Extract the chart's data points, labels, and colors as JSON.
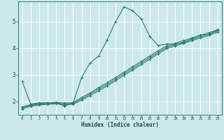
{
  "xlabel": "Humidex (Indice chaleur)",
  "bg_color": "#cce8ec",
  "grid_color": "#ffffff",
  "line_color": "#2e7d6e",
  "xlim": [
    -0.5,
    23.5
  ],
  "ylim": [
    1.5,
    5.75
  ],
  "yticks": [
    2,
    3,
    4,
    5
  ],
  "xticks": [
    0,
    1,
    2,
    3,
    4,
    5,
    6,
    7,
    8,
    9,
    10,
    11,
    12,
    13,
    14,
    15,
    16,
    17,
    18,
    19,
    20,
    21,
    22,
    23
  ],
  "line1_x": [
    0,
    1,
    2,
    3,
    4,
    5,
    6,
    7,
    8,
    9,
    10,
    11,
    12,
    13,
    14,
    15,
    16,
    17,
    18,
    19,
    20,
    21,
    22,
    23
  ],
  "line1_y": [
    2.75,
    1.9,
    1.95,
    1.95,
    1.95,
    1.82,
    1.95,
    2.9,
    3.45,
    3.7,
    4.3,
    5.0,
    5.55,
    5.4,
    5.1,
    4.45,
    4.1,
    4.15,
    4.15,
    4.2,
    4.35,
    4.5,
    4.5,
    4.7
  ],
  "line2_x": [
    0,
    1,
    2,
    3,
    4,
    5,
    6,
    7,
    8,
    9,
    10,
    11,
    12,
    13,
    14,
    15,
    16,
    17,
    18,
    19,
    20,
    21,
    22,
    23
  ],
  "line2_y": [
    1.72,
    1.82,
    1.87,
    1.89,
    1.91,
    1.88,
    1.9,
    2.05,
    2.22,
    2.4,
    2.58,
    2.78,
    2.98,
    3.18,
    3.38,
    3.58,
    3.78,
    3.98,
    4.08,
    4.18,
    4.28,
    4.38,
    4.48,
    4.6
  ],
  "line3_x": [
    0,
    1,
    2,
    3,
    4,
    5,
    6,
    7,
    8,
    9,
    10,
    11,
    12,
    13,
    14,
    15,
    16,
    17,
    18,
    19,
    20,
    21,
    22,
    23
  ],
  "line3_y": [
    1.76,
    1.85,
    1.9,
    1.92,
    1.94,
    1.91,
    1.93,
    2.1,
    2.27,
    2.46,
    2.64,
    2.84,
    3.04,
    3.24,
    3.44,
    3.64,
    3.84,
    4.03,
    4.13,
    4.23,
    4.33,
    4.43,
    4.53,
    4.64
  ],
  "line4_x": [
    0,
    1,
    2,
    3,
    4,
    5,
    6,
    7,
    8,
    9,
    10,
    11,
    12,
    13,
    14,
    15,
    16,
    17,
    18,
    19,
    20,
    21,
    22,
    23
  ],
  "line4_y": [
    1.8,
    1.88,
    1.93,
    1.95,
    1.97,
    1.94,
    1.96,
    2.15,
    2.32,
    2.52,
    2.7,
    2.9,
    3.1,
    3.3,
    3.5,
    3.7,
    3.9,
    4.08,
    4.18,
    4.28,
    4.38,
    4.48,
    4.58,
    4.68
  ]
}
